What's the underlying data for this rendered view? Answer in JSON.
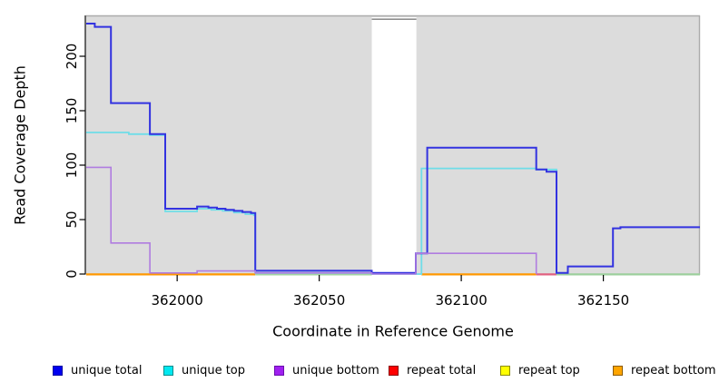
{
  "chart_data": {
    "type": "line",
    "subtype": "step-coverage-profile",
    "title": "",
    "xlabel": "Coordinate in Reference Genome",
    "ylabel": "Read Coverage Depth",
    "x_ticks": [
      362000,
      362050,
      362100,
      362150
    ],
    "y_ticks": [
      0,
      50,
      100,
      150,
      200
    ],
    "xlim": [
      361968,
      362184
    ],
    "ylim": [
      0,
      237
    ],
    "grid": false,
    "panel_color": "#DCDCDC",
    "panel_border_color": "#ABABAB",
    "masked_region": {
      "x_start": 362068.5,
      "x_end": 362084.2,
      "fill": "#FFFFFF",
      "cap_value": 234,
      "cap_color": "#8F8F8F"
    },
    "series": [
      {
        "name": "unique total",
        "line_color": "#3333E0",
        "width": 2,
        "points": [
          [
            361968,
            230
          ],
          [
            361971,
            227
          ],
          [
            361976.7,
            157
          ],
          [
            361990.4,
            128.5
          ],
          [
            361995.8,
            60
          ],
          [
            362007,
            62
          ],
          [
            362011,
            61
          ],
          [
            362014,
            60
          ],
          [
            362017,
            59
          ],
          [
            362020,
            58
          ],
          [
            362023,
            57
          ],
          [
            362026,
            56
          ],
          [
            362027.5,
            3
          ],
          [
            362068.5,
            1
          ],
          [
            362084,
            19
          ],
          [
            362088,
            116
          ],
          [
            362126.4,
            96
          ],
          [
            362130,
            94
          ],
          [
            362133.5,
            1
          ],
          [
            362137.5,
            7
          ],
          [
            362153.4,
            42
          ],
          [
            362156,
            43
          ]
        ],
        "end_x": 362184
      },
      {
        "name": "unique top",
        "line_color": "#6FDDE8",
        "width": 1.8,
        "points": [
          [
            361968,
            130
          ],
          [
            361983,
            128.5
          ],
          [
            361990.4,
            127.5
          ],
          [
            361995.8,
            57.5
          ],
          [
            362007,
            60
          ],
          [
            362012,
            59
          ],
          [
            362016,
            58
          ],
          [
            362020,
            56.5
          ],
          [
            362024,
            55
          ],
          [
            362027,
            54
          ],
          [
            362027.5,
            1
          ],
          [
            362068.5,
            0
          ],
          [
            362086,
            97
          ],
          [
            362126.4,
            96
          ],
          [
            362133.5,
            0
          ]
        ],
        "end_x": null
      },
      {
        "name": "unique bottom",
        "line_color": "#B07CE0",
        "width": 1.6,
        "points": [
          [
            361968,
            98
          ],
          [
            361976.7,
            28.5
          ],
          [
            361990.4,
            1
          ],
          [
            362007,
            2.8
          ],
          [
            362027.5,
            1
          ],
          [
            362068.5,
            0
          ],
          [
            362084,
            19
          ],
          [
            362126.4,
            0
          ]
        ],
        "end_x": null
      },
      {
        "name": "repeat total",
        "line_color": "#E05A78",
        "width": 1.6,
        "points": [
          [
            361968,
            0
          ]
        ],
        "end_x": 362184,
        "note": "flat at 0; visible only at 362126-362134 where not overdrawn"
      },
      {
        "name": "repeat top",
        "line_color": "#EEEE00",
        "width": 1.6,
        "points": [
          [
            361968,
            0
          ]
        ],
        "end_x": 362184,
        "note": "flat at 0; blends with unique top into pale green at 362028-362069 and 362134-362184"
      },
      {
        "name": "repeat bottom",
        "line_color": "#FF9800",
        "width": 2,
        "points": [
          [
            361968,
            0
          ]
        ],
        "end_x": 362184,
        "note": "flat at 0; drawn over others at 361968-362028 and 362086-362126"
      }
    ],
    "baseline_segments": [
      {
        "x1": 361968,
        "x2": 362027.5,
        "color": "#FF9800",
        "series": "repeat bottom"
      },
      {
        "x1": 362027.5,
        "x2": 362068.5,
        "color": "#A2D6A2",
        "series": "repeat top over unique top"
      },
      {
        "x1": 362086,
        "x2": 362126.4,
        "color": "#FF9800",
        "series": "repeat bottom"
      },
      {
        "x1": 362126.4,
        "x2": 362133.5,
        "color": "#E06080",
        "series": "repeat total"
      },
      {
        "x1": 362133.5,
        "x2": 362184,
        "color": "#9CCF9C",
        "series": "repeat top over unique top"
      }
    ],
    "legend": [
      {
        "label": "unique total",
        "fill": "#0000F0",
        "border": "#0000A0"
      },
      {
        "label": "unique top",
        "fill": "#00E8F0",
        "border": "#008B8B"
      },
      {
        "label": "unique bottom",
        "fill": "#A020F0",
        "border": "#6A0DAD"
      },
      {
        "label": "repeat total",
        "fill": "#FF0000",
        "border": "#8B0000"
      },
      {
        "label": "repeat top",
        "fill": "#FFFF00",
        "border": "#8B8B00"
      },
      {
        "label": "repeat bottom",
        "fill": "#FFA500",
        "border": "#8B5A00"
      }
    ],
    "legend_position": "bottom"
  }
}
